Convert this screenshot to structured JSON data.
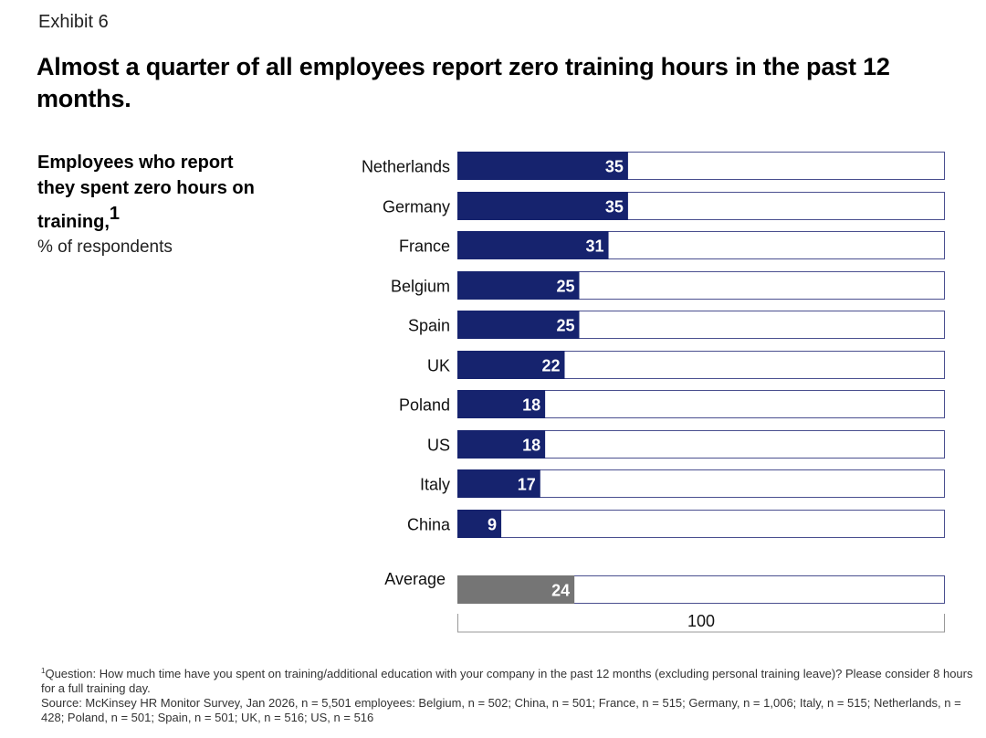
{
  "header": {
    "exhibit": "Exhibit 6",
    "title": "Almost a quarter of all employees report zero training hours in the past 12 months."
  },
  "subtitle": {
    "bold": "Employees who report they spent zero hours on training,",
    "marker": "1",
    "unit": "% of respondents"
  },
  "chart_data": {
    "type": "bar",
    "orientation": "horizontal",
    "categories": [
      "Netherlands",
      "Germany",
      "France",
      "Belgium",
      "Spain",
      "UK",
      "Poland",
      "US",
      "Italy",
      "China"
    ],
    "values": [
      35,
      35,
      31,
      25,
      25,
      22,
      18,
      18,
      17,
      9
    ],
    "average": {
      "label": "Average",
      "value": 24
    },
    "scale_max": 100,
    "scale_label": "100",
    "colors": {
      "bar": "#16236e",
      "average": "#757575",
      "outline": "#4a4f8f",
      "text_on_bar": "#ffffff"
    }
  },
  "footnotes": {
    "marker": "1",
    "question": "Question: How much time have you spent on training/additional education with your company in the past 12 months (excluding personal training leave)? Please consider 8 hours for a full training day.",
    "source": "Source: McKinsey HR Monitor Survey, Jan 2026, n = 5,501 employees: Belgium, n = 502; China, n = 501; France, n = 515; Germany, n = 1,006; Italy, n = 515; Netherlands, n = 428; Poland, n = 501; Spain, n = 501; UK, n = 516; US, n = 516"
  }
}
